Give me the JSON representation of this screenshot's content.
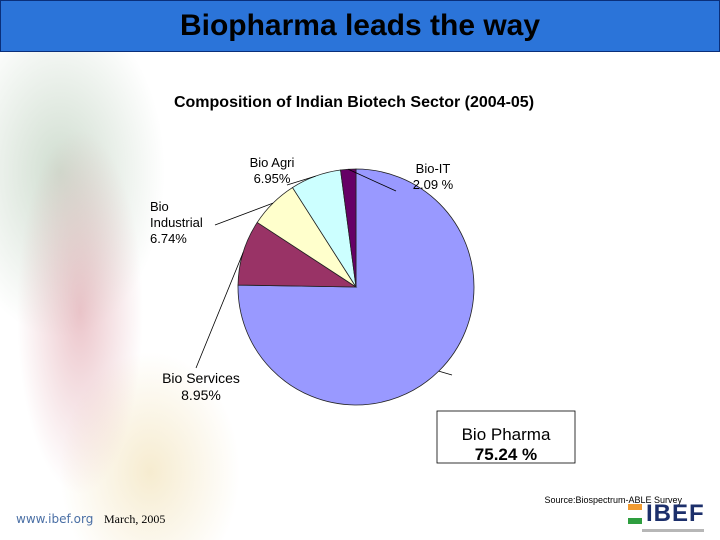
{
  "slide": {
    "title": "Biopharma leads the way",
    "source": "Source:Biospectrum-ABLE Survey",
    "footer_url": "www.ibef.org",
    "footer_date": "March, 2005",
    "logo_text": "IBEF",
    "colors": {
      "title_bar": "#2b74d9",
      "title_border": "#0a2f7a"
    }
  },
  "chart_data": {
    "type": "pie",
    "title": "Composition of Indian Biotech Sector (2004-05)",
    "slices": [
      {
        "name": "Bio Pharma",
        "value": 75.24,
        "label_lines": [
          "Bio Pharma",
          "75.24 %"
        ],
        "color": "#9999ff"
      },
      {
        "name": "Bio Services",
        "value": 8.95,
        "label_lines": [
          "Bio Services",
          "8.95%"
        ],
        "color": "#993366"
      },
      {
        "name": "Bio Industrial",
        "value": 6.74,
        "label_lines": [
          "Bio",
          "Industrial",
          "6.74%"
        ],
        "color": "#ffffcc"
      },
      {
        "name": "Bio Agri",
        "value": 6.95,
        "label_lines": [
          "Bio Agri",
          "6.95%"
        ],
        "color": "#ccffff"
      },
      {
        "name": "Bio-IT",
        "value": 2.09,
        "label_lines": [
          "Bio-IT",
          "2.09 %"
        ],
        "color": "#660066"
      }
    ]
  }
}
